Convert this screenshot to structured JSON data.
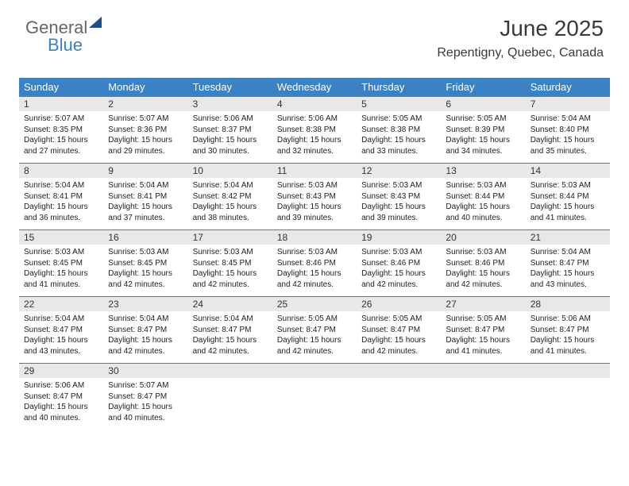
{
  "logo": {
    "text_general": "General",
    "text_blue": "Blue"
  },
  "header": {
    "title": "June 2025",
    "location": "Repentigny, Quebec, Canada"
  },
  "colors": {
    "header_bg": "#3b82c4",
    "header_fg": "#ffffff",
    "daynum_bg": "#e8e8e8",
    "text": "#222222",
    "rule": "#3b82c4"
  },
  "weekdays": [
    "Sunday",
    "Monday",
    "Tuesday",
    "Wednesday",
    "Thursday",
    "Friday",
    "Saturday"
  ],
  "days": [
    {
      "n": 1,
      "sunrise": "5:07 AM",
      "sunset": "8:35 PM",
      "dl": "15 hours and 27 minutes."
    },
    {
      "n": 2,
      "sunrise": "5:07 AM",
      "sunset": "8:36 PM",
      "dl": "15 hours and 29 minutes."
    },
    {
      "n": 3,
      "sunrise": "5:06 AM",
      "sunset": "8:37 PM",
      "dl": "15 hours and 30 minutes."
    },
    {
      "n": 4,
      "sunrise": "5:06 AM",
      "sunset": "8:38 PM",
      "dl": "15 hours and 32 minutes."
    },
    {
      "n": 5,
      "sunrise": "5:05 AM",
      "sunset": "8:38 PM",
      "dl": "15 hours and 33 minutes."
    },
    {
      "n": 6,
      "sunrise": "5:05 AM",
      "sunset": "8:39 PM",
      "dl": "15 hours and 34 minutes."
    },
    {
      "n": 7,
      "sunrise": "5:04 AM",
      "sunset": "8:40 PM",
      "dl": "15 hours and 35 minutes."
    },
    {
      "n": 8,
      "sunrise": "5:04 AM",
      "sunset": "8:41 PM",
      "dl": "15 hours and 36 minutes."
    },
    {
      "n": 9,
      "sunrise": "5:04 AM",
      "sunset": "8:41 PM",
      "dl": "15 hours and 37 minutes."
    },
    {
      "n": 10,
      "sunrise": "5:04 AM",
      "sunset": "8:42 PM",
      "dl": "15 hours and 38 minutes."
    },
    {
      "n": 11,
      "sunrise": "5:03 AM",
      "sunset": "8:43 PM",
      "dl": "15 hours and 39 minutes."
    },
    {
      "n": 12,
      "sunrise": "5:03 AM",
      "sunset": "8:43 PM",
      "dl": "15 hours and 39 minutes."
    },
    {
      "n": 13,
      "sunrise": "5:03 AM",
      "sunset": "8:44 PM",
      "dl": "15 hours and 40 minutes."
    },
    {
      "n": 14,
      "sunrise": "5:03 AM",
      "sunset": "8:44 PM",
      "dl": "15 hours and 41 minutes."
    },
    {
      "n": 15,
      "sunrise": "5:03 AM",
      "sunset": "8:45 PM",
      "dl": "15 hours and 41 minutes."
    },
    {
      "n": 16,
      "sunrise": "5:03 AM",
      "sunset": "8:45 PM",
      "dl": "15 hours and 42 minutes."
    },
    {
      "n": 17,
      "sunrise": "5:03 AM",
      "sunset": "8:45 PM",
      "dl": "15 hours and 42 minutes."
    },
    {
      "n": 18,
      "sunrise": "5:03 AM",
      "sunset": "8:46 PM",
      "dl": "15 hours and 42 minutes."
    },
    {
      "n": 19,
      "sunrise": "5:03 AM",
      "sunset": "8:46 PM",
      "dl": "15 hours and 42 minutes."
    },
    {
      "n": 20,
      "sunrise": "5:03 AM",
      "sunset": "8:46 PM",
      "dl": "15 hours and 42 minutes."
    },
    {
      "n": 21,
      "sunrise": "5:04 AM",
      "sunset": "8:47 PM",
      "dl": "15 hours and 43 minutes."
    },
    {
      "n": 22,
      "sunrise": "5:04 AM",
      "sunset": "8:47 PM",
      "dl": "15 hours and 43 minutes."
    },
    {
      "n": 23,
      "sunrise": "5:04 AM",
      "sunset": "8:47 PM",
      "dl": "15 hours and 42 minutes."
    },
    {
      "n": 24,
      "sunrise": "5:04 AM",
      "sunset": "8:47 PM",
      "dl": "15 hours and 42 minutes."
    },
    {
      "n": 25,
      "sunrise": "5:05 AM",
      "sunset": "8:47 PM",
      "dl": "15 hours and 42 minutes."
    },
    {
      "n": 26,
      "sunrise": "5:05 AM",
      "sunset": "8:47 PM",
      "dl": "15 hours and 42 minutes."
    },
    {
      "n": 27,
      "sunrise": "5:05 AM",
      "sunset": "8:47 PM",
      "dl": "15 hours and 41 minutes."
    },
    {
      "n": 28,
      "sunrise": "5:06 AM",
      "sunset": "8:47 PM",
      "dl": "15 hours and 41 minutes."
    },
    {
      "n": 29,
      "sunrise": "5:06 AM",
      "sunset": "8:47 PM",
      "dl": "15 hours and 40 minutes."
    },
    {
      "n": 30,
      "sunrise": "5:07 AM",
      "sunset": "8:47 PM",
      "dl": "15 hours and 40 minutes."
    }
  ],
  "labels": {
    "sunrise": "Sunrise:",
    "sunset": "Sunset:",
    "daylight": "Daylight:"
  },
  "layout": {
    "start_weekday": 0,
    "total_cells": 35
  }
}
